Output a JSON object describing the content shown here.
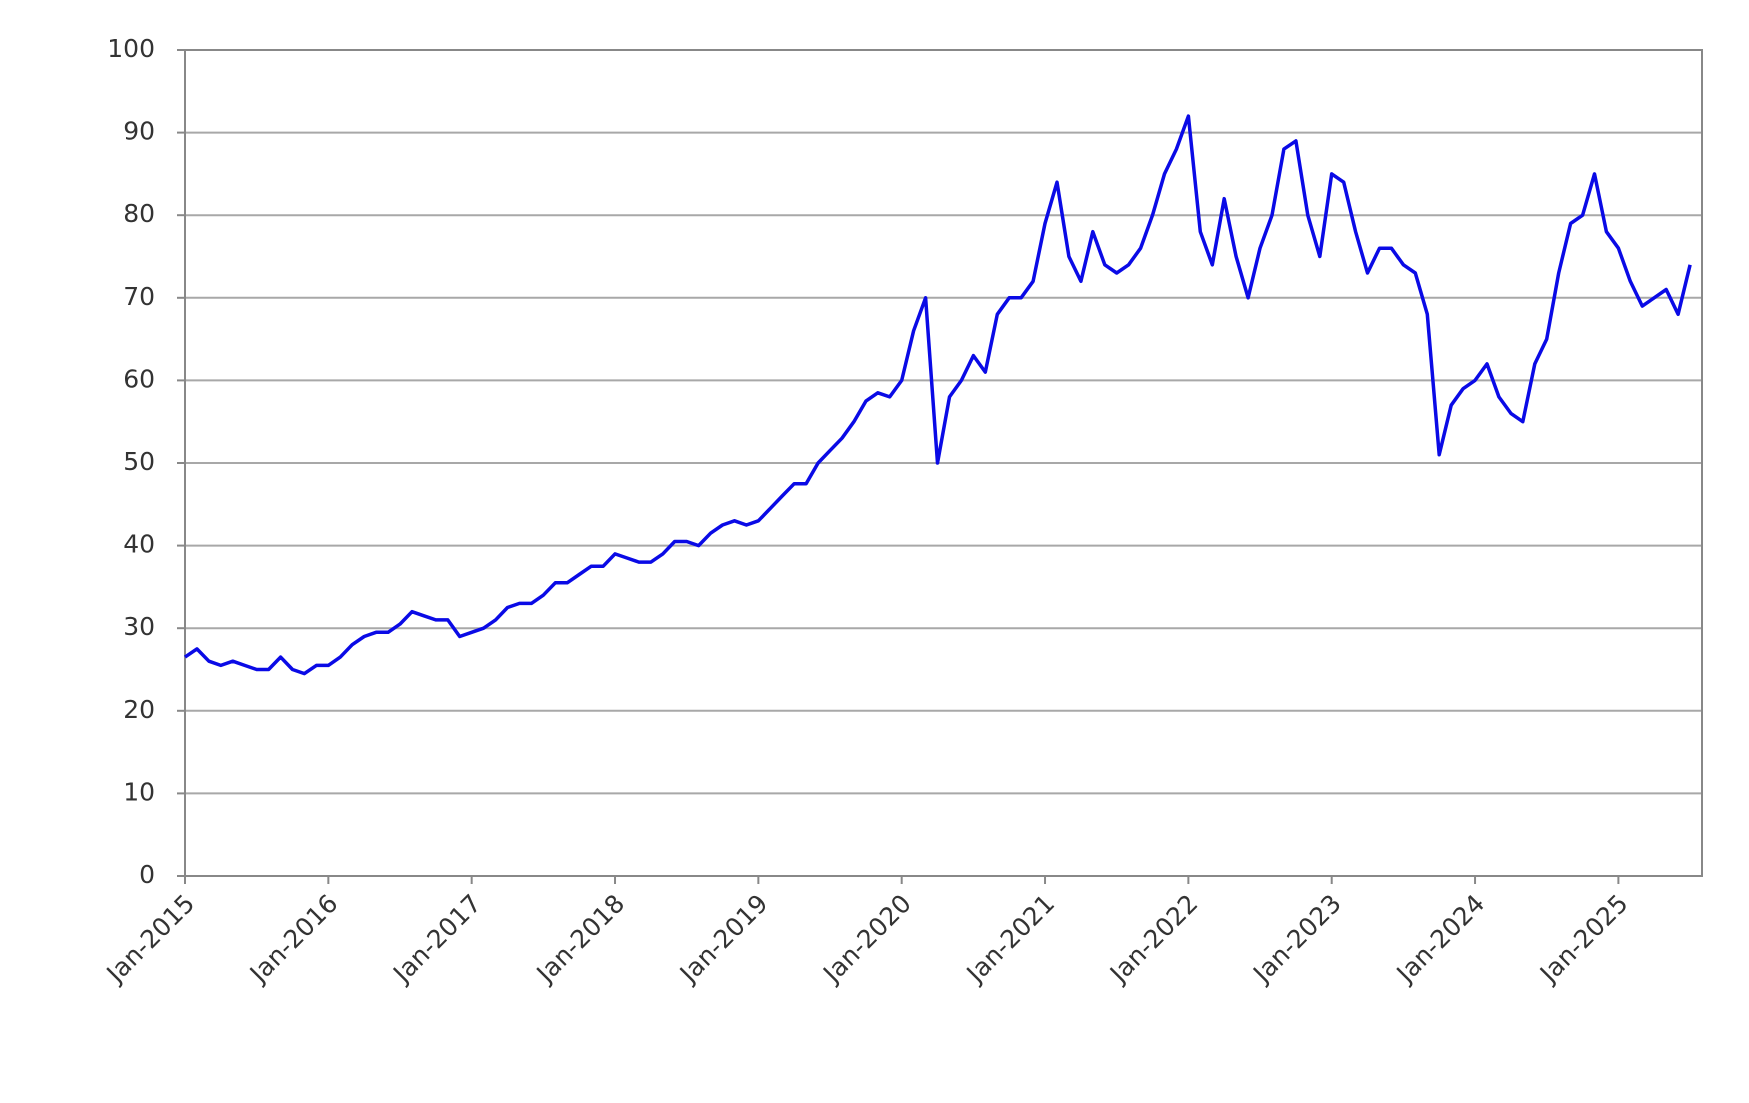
{
  "chart_data": {
    "type": "line",
    "x": [
      "2015-01",
      "2015-02",
      "2015-03",
      "2015-04",
      "2015-05",
      "2015-06",
      "2015-07",
      "2015-08",
      "2015-09",
      "2015-10",
      "2015-11",
      "2015-12",
      "2016-01",
      "2016-02",
      "2016-03",
      "2016-04",
      "2016-05",
      "2016-06",
      "2016-07",
      "2016-08",
      "2016-09",
      "2016-10",
      "2016-11",
      "2016-12",
      "2017-01",
      "2017-02",
      "2017-03",
      "2017-04",
      "2017-05",
      "2017-06",
      "2017-07",
      "2017-08",
      "2017-09",
      "2017-10",
      "2017-11",
      "2017-12",
      "2018-01",
      "2018-02",
      "2018-03",
      "2018-04",
      "2018-05",
      "2018-06",
      "2018-07",
      "2018-08",
      "2018-09",
      "2018-10",
      "2018-11",
      "2018-12",
      "2019-01",
      "2019-02",
      "2019-03",
      "2019-04",
      "2019-05",
      "2019-06",
      "2019-07",
      "2019-08",
      "2019-09",
      "2019-10",
      "2019-11",
      "2019-12",
      "2020-01",
      "2020-02",
      "2020-03",
      "2020-04",
      "2020-05",
      "2020-06",
      "2020-07",
      "2020-08",
      "2020-09",
      "2020-10",
      "2020-11",
      "2020-12",
      "2021-01",
      "2021-02",
      "2021-03",
      "2021-04",
      "2021-05",
      "2021-06",
      "2021-07",
      "2021-08",
      "2021-09",
      "2021-10",
      "2021-11",
      "2021-12",
      "2022-01",
      "2022-02",
      "2022-03",
      "2022-04",
      "2022-05",
      "2022-06",
      "2022-07",
      "2022-08",
      "2022-09",
      "2022-10",
      "2022-11",
      "2022-12",
      "2023-01",
      "2023-02",
      "2023-03",
      "2023-04",
      "2023-05",
      "2023-06",
      "2023-07",
      "2023-08",
      "2023-09",
      "2023-10",
      "2023-11",
      "2023-12",
      "2024-01",
      "2024-02",
      "2024-03",
      "2024-04",
      "2024-05",
      "2024-06",
      "2024-07",
      "2024-08",
      "2024-09",
      "2024-10",
      "2024-11",
      "2024-12",
      "2025-01",
      "2025-02",
      "2025-03",
      "2025-04",
      "2025-05",
      "2025-06",
      "2025-07"
    ],
    "series": [
      {
        "color": "#0a0ae6",
        "values": [
          26.5,
          27.5,
          26,
          25.5,
          26,
          25.5,
          25,
          25,
          26.5,
          25,
          24.5,
          25.5,
          25.5,
          26.5,
          28,
          29,
          29.5,
          29.5,
          30.5,
          32,
          31.5,
          31,
          31,
          29,
          29.5,
          30,
          31,
          32.5,
          33,
          33,
          34,
          35.5,
          35.5,
          36.5,
          37.5,
          37.5,
          39,
          38.5,
          38,
          38,
          39,
          40.5,
          40.5,
          40,
          41.5,
          42.5,
          43,
          42.5,
          43,
          44.5,
          46,
          47.5,
          47.5,
          50,
          51.5,
          53,
          55,
          57.5,
          58.5,
          58,
          60,
          66,
          70,
          50,
          58,
          60,
          63,
          61,
          68,
          70,
          70,
          72,
          79,
          84,
          75,
          72,
          78,
          74,
          73,
          74,
          76,
          80,
          85,
          88,
          92,
          78,
          74,
          82,
          75,
          70,
          76,
          80,
          88,
          89,
          80,
          75,
          85,
          84,
          78,
          73,
          76,
          76,
          74,
          73,
          68,
          51,
          57,
          59,
          60,
          62,
          58,
          56,
          55,
          62,
          65,
          73,
          79,
          80,
          85,
          78,
          76,
          72,
          69,
          70,
          71,
          68,
          74
        ]
      }
    ],
    "xlim": [
      "2015-01",
      "2025-08"
    ],
    "xticks": [
      {
        "value": "2015-01",
        "label": "Jan-2015"
      },
      {
        "value": "2016-01",
        "label": "Jan-2016"
      },
      {
        "value": "2017-01",
        "label": "Jan-2017"
      },
      {
        "value": "2018-01",
        "label": "Jan-2018"
      },
      {
        "value": "2019-01",
        "label": "Jan-2019"
      },
      {
        "value": "2020-01",
        "label": "Jan-2020"
      },
      {
        "value": "2021-01",
        "label": "Jan-2021"
      },
      {
        "value": "2022-01",
        "label": "Jan-2022"
      },
      {
        "value": "2023-01",
        "label": "Jan-2023"
      },
      {
        "value": "2024-01",
        "label": "Jan-2024"
      },
      {
        "value": "2025-01",
        "label": "Jan-2025"
      }
    ],
    "ylim": [
      0,
      100
    ],
    "yticks": [
      0,
      10,
      20,
      30,
      40,
      50,
      60,
      70,
      80,
      90,
      100
    ],
    "grid": true
  }
}
